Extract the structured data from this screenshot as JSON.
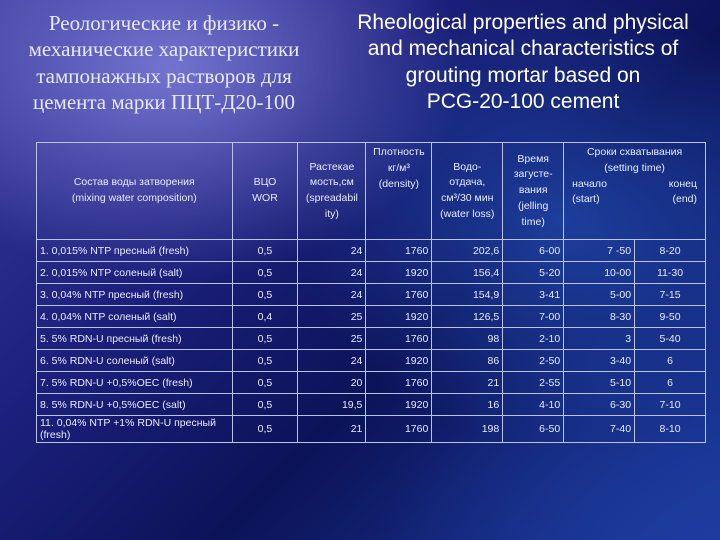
{
  "title_ru": [
    "Реологические и физико -",
    "механические характеристики",
    "тампонажных растворов для",
    "цемента марки ПЦТ-Д20-100"
  ],
  "title_en": [
    "Rheological properties and physical",
    "and mechanical characteristics of",
    "grouting mortar based on",
    "PCG-20-100 cement"
  ],
  "table": {
    "headers": {
      "composition": [
        "Состав воды затворения",
        "(mixing water composition)"
      ],
      "wor": [
        "ВЦО",
        "WOR"
      ],
      "spread": [
        "Растекае",
        "мость,см",
        "(spreadabil",
        "ity)"
      ],
      "density": [
        "Плотность",
        "кг/м³",
        "(density)"
      ],
      "waterloss": [
        "Водо-",
        "отдача,",
        "см³/30 мин",
        "(water loss)"
      ],
      "jelling": [
        "Время",
        "загусте-",
        "вания",
        "(jelling",
        "time)"
      ],
      "setting_title": [
        "Сроки схватывания",
        "(setting time)"
      ],
      "setting_start": [
        "начало",
        "(start)"
      ],
      "setting_end": [
        "конец",
        "(end)"
      ]
    },
    "rows": [
      [
        "1. 0,015% NTP пресный (fresh)",
        "0,5",
        "24",
        "1760",
        "202,6",
        "6-00",
        "7 -50",
        "8-20"
      ],
      [
        "2. 0,015% NTP соленый (salt)",
        "0,5",
        "24",
        "1920",
        "156,4",
        "5-20",
        "10-00",
        "11-30"
      ],
      [
        "3. 0,04% NTP пресный (fresh)",
        "0,5",
        "24",
        "1760",
        "154,9",
        "3-41",
        "5-00",
        "7-15"
      ],
      [
        "4. 0,04% NTP соленый (salt)",
        "0,4",
        "25",
        "1920",
        "126,5",
        "7-00",
        "8-30",
        "9-50"
      ],
      [
        "5. 5% RDN-U пресный (fresh)",
        "0,5",
        "25",
        "1760",
        "98",
        "2-10",
        "3",
        "5-40"
      ],
      [
        "6. 5% RDN-U соленый  (salt)",
        "0,5",
        "24",
        "1920",
        "86",
        "2-50",
        "3-40",
        "6"
      ],
      [
        "7. 5% RDN-U +0,5%OEC (fresh)",
        "0,5",
        "20",
        "1760",
        "21",
        "2-55",
        "5-10",
        "6"
      ],
      [
        "8. 5% RDN-U +0,5%OEC  (salt)",
        "0,5",
        "19,5",
        "1920",
        "16",
        "4-10",
        "6-30",
        "7-10"
      ],
      [
        "11. 0,04% NTP +1% RDN-U пресный (fresh)",
        "0,5",
        "21",
        "1760",
        "198",
        "6-50",
        "7-40",
        "8-10"
      ]
    ]
  }
}
